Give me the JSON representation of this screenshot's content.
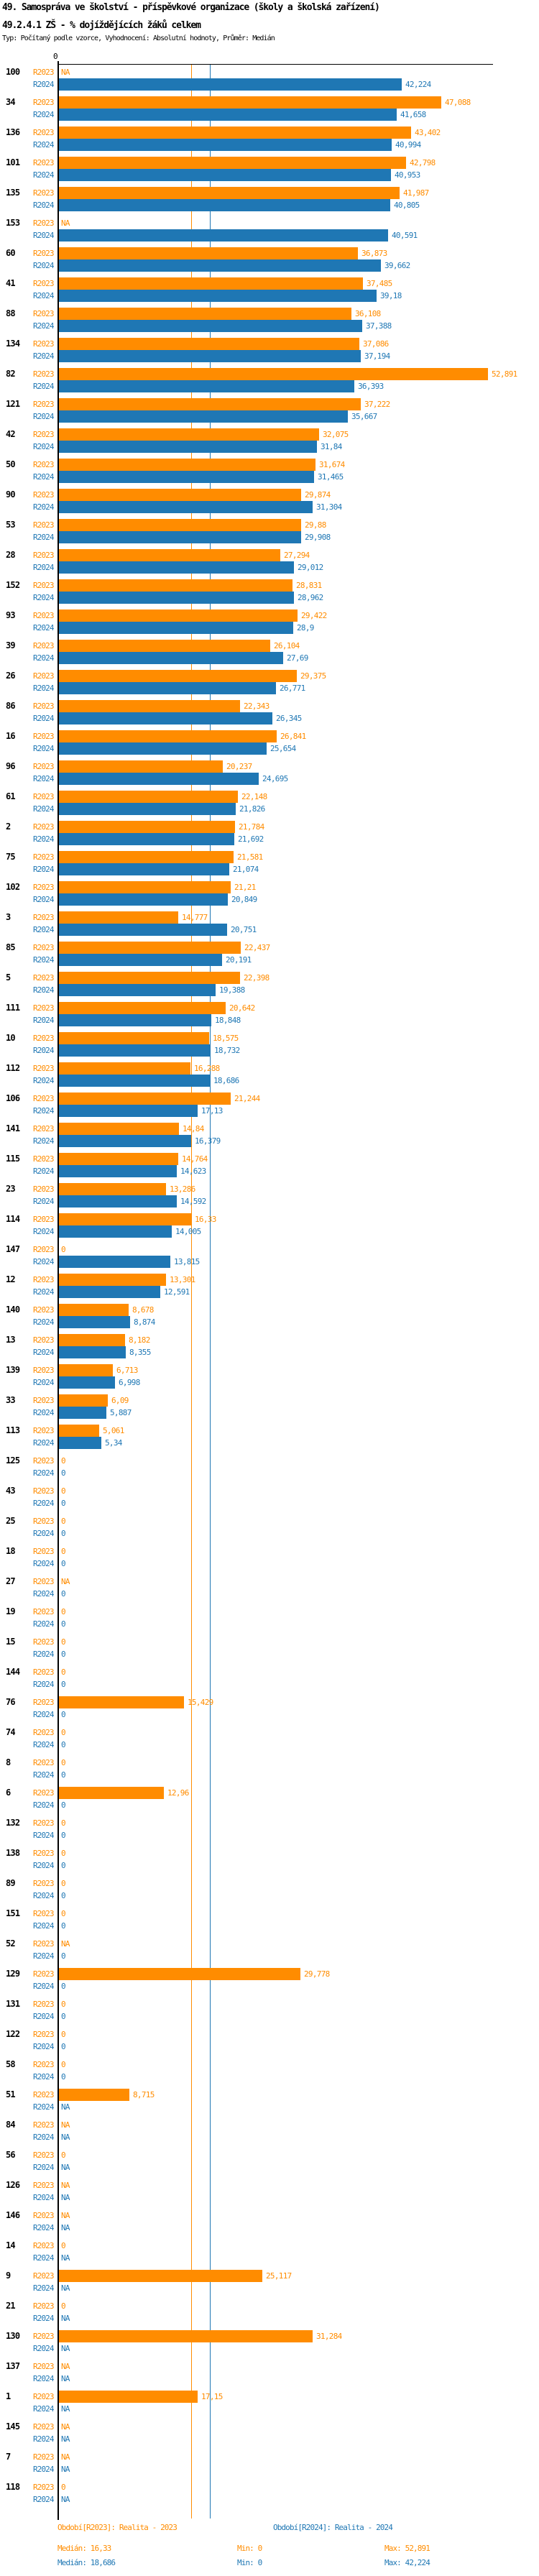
{
  "title": {
    "line1": "49. Samospráva ve školství - příspěvkové organizace (školy a školská zařízení)",
    "line2": "49.2.4.1 ZŠ - % dojíždějících žáků celkem",
    "line3": "Typ: Počítaný podle vzorce, Vyhodnocení: Absolutní hodnoty, Průměr: Medián"
  },
  "colors": {
    "r2023": "#FF8C00",
    "r2024": "#1F77B4",
    "axis": "#000000"
  },
  "chart_data": {
    "type": "bar",
    "orientation": "horizontal",
    "xlabel": "",
    "ylabel": "",
    "axis": {
      "zero_label": "0",
      "x_min": 0,
      "x_max": 53.5,
      "grid": false
    },
    "na_label": "NA",
    "series_labels": {
      "r2023": "R2023",
      "r2024": "R2024"
    },
    "medians": {
      "r2023": 16.33,
      "r2024": 18.686
    },
    "rows": [
      {
        "id": "100",
        "r2023": null,
        "r2024": 42.224
      },
      {
        "id": "34",
        "r2023": 47.088,
        "r2024": 41.658
      },
      {
        "id": "136",
        "r2023": 43.402,
        "r2024": 40.994
      },
      {
        "id": "101",
        "r2023": 42.798,
        "r2024": 40.953
      },
      {
        "id": "135",
        "r2023": 41.987,
        "r2024": 40.805
      },
      {
        "id": "153",
        "r2023": null,
        "r2024": 40.591
      },
      {
        "id": "60",
        "r2023": 36.873,
        "r2024": 39.662
      },
      {
        "id": "41",
        "r2023": 37.485,
        "r2024": 39.18
      },
      {
        "id": "88",
        "r2023": 36.108,
        "r2024": 37.388
      },
      {
        "id": "134",
        "r2023": 37.086,
        "r2024": 37.194
      },
      {
        "id": "82",
        "r2023": 52.891,
        "r2024": 36.393
      },
      {
        "id": "121",
        "r2023": 37.222,
        "r2024": 35.667
      },
      {
        "id": "42",
        "r2023": 32.075,
        "r2024": 31.84
      },
      {
        "id": "50",
        "r2023": 31.674,
        "r2024": 31.465
      },
      {
        "id": "90",
        "r2023": 29.874,
        "r2024": 31.304
      },
      {
        "id": "53",
        "r2023": 29.88,
        "r2024": 29.908
      },
      {
        "id": "28",
        "r2023": 27.294,
        "r2024": 29.012
      },
      {
        "id": "152",
        "r2023": 28.831,
        "r2024": 28.962
      },
      {
        "id": "93",
        "r2023": 29.422,
        "r2024": 28.9
      },
      {
        "id": "39",
        "r2023": 26.104,
        "r2024": 27.69
      },
      {
        "id": "26",
        "r2023": 29.375,
        "r2024": 26.771
      },
      {
        "id": "86",
        "r2023": 22.343,
        "r2024": 26.345
      },
      {
        "id": "16",
        "r2023": 26.841,
        "r2024": 25.654
      },
      {
        "id": "96",
        "r2023": 20.237,
        "r2024": 24.695
      },
      {
        "id": "61",
        "r2023": 22.148,
        "r2024": 21.826
      },
      {
        "id": "2",
        "r2023": 21.784,
        "r2024": 21.692
      },
      {
        "id": "75",
        "r2023": 21.581,
        "r2024": 21.074
      },
      {
        "id": "102",
        "r2023": 21.21,
        "r2024": 20.849
      },
      {
        "id": "3",
        "r2023": 14.777,
        "r2024": 20.751
      },
      {
        "id": "85",
        "r2023": 22.437,
        "r2024": 20.191
      },
      {
        "id": "5",
        "r2023": 22.398,
        "r2024": 19.388
      },
      {
        "id": "111",
        "r2023": 20.642,
        "r2024": 18.848
      },
      {
        "id": "10",
        "r2023": 18.575,
        "r2024": 18.732
      },
      {
        "id": "112",
        "r2023": 16.288,
        "r2024": 18.686
      },
      {
        "id": "106",
        "r2023": 21.244,
        "r2024": 17.13
      },
      {
        "id": "141",
        "r2023": 14.84,
        "r2024": 16.379
      },
      {
        "id": "115",
        "r2023": 14.764,
        "r2024": 14.623
      },
      {
        "id": "23",
        "r2023": 13.286,
        "r2024": 14.592
      },
      {
        "id": "114",
        "r2023": 16.33,
        "r2024": 14.005
      },
      {
        "id": "147",
        "r2023": 0,
        "r2024": 13.815
      },
      {
        "id": "12",
        "r2023": 13.301,
        "r2024": 12.591
      },
      {
        "id": "140",
        "r2023": 8.678,
        "r2024": 8.874
      },
      {
        "id": "13",
        "r2023": 8.182,
        "r2024": 8.355
      },
      {
        "id": "139",
        "r2023": 6.713,
        "r2024": 6.998
      },
      {
        "id": "33",
        "r2023": 6.09,
        "r2024": 5.887
      },
      {
        "id": "113",
        "r2023": 5.061,
        "r2024": 5.34
      },
      {
        "id": "125",
        "r2023": 0,
        "r2024": 0
      },
      {
        "id": "43",
        "r2023": 0,
        "r2024": 0
      },
      {
        "id": "25",
        "r2023": 0,
        "r2024": 0
      },
      {
        "id": "18",
        "r2023": 0,
        "r2024": 0
      },
      {
        "id": "27",
        "r2023": null,
        "r2024": 0
      },
      {
        "id": "19",
        "r2023": 0,
        "r2024": 0
      },
      {
        "id": "15",
        "r2023": 0,
        "r2024": 0
      },
      {
        "id": "144",
        "r2023": 0,
        "r2024": 0
      },
      {
        "id": "76",
        "r2023": 15.429,
        "r2024": 0
      },
      {
        "id": "74",
        "r2023": 0,
        "r2024": 0
      },
      {
        "id": "8",
        "r2023": 0,
        "r2024": 0
      },
      {
        "id": "6",
        "r2023": 12.96,
        "r2024": 0
      },
      {
        "id": "132",
        "r2023": 0,
        "r2024": 0
      },
      {
        "id": "138",
        "r2023": 0,
        "r2024": 0
      },
      {
        "id": "89",
        "r2023": 0,
        "r2024": 0
      },
      {
        "id": "151",
        "r2023": 0,
        "r2024": 0
      },
      {
        "id": "52",
        "r2023": null,
        "r2024": 0
      },
      {
        "id": "129",
        "r2023": 29.778,
        "r2024": 0
      },
      {
        "id": "131",
        "r2023": 0,
        "r2024": 0
      },
      {
        "id": "122",
        "r2023": 0,
        "r2024": 0
      },
      {
        "id": "58",
        "r2023": 0,
        "r2024": 0
      },
      {
        "id": "51",
        "r2023": 8.715,
        "r2024": null
      },
      {
        "id": "84",
        "r2023": null,
        "r2024": null
      },
      {
        "id": "56",
        "r2023": 0,
        "r2024": null
      },
      {
        "id": "126",
        "r2023": null,
        "r2024": null
      },
      {
        "id": "146",
        "r2023": null,
        "r2024": null
      },
      {
        "id": "14",
        "r2023": 0,
        "r2024": null
      },
      {
        "id": "9",
        "r2023": 25.117,
        "r2024": null
      },
      {
        "id": "21",
        "r2023": 0,
        "r2024": null
      },
      {
        "id": "130",
        "r2023": 31.284,
        "r2024": null
      },
      {
        "id": "137",
        "r2023": null,
        "r2024": null
      },
      {
        "id": "1",
        "r2023": 17.15,
        "r2024": null
      },
      {
        "id": "145",
        "r2023": null,
        "r2024": null
      },
      {
        "id": "7",
        "r2023": null,
        "r2024": null
      },
      {
        "id": "118",
        "r2023": 0,
        "r2024": null
      }
    ],
    "legend": {
      "r2023": "Období[R2023]: Realita - 2023",
      "r2024": "Období[R2024]: Realita - 2024",
      "position": "bottom"
    },
    "stats": {
      "r2023": {
        "median": "Medián: 16,33",
        "min": "Min: 0",
        "max": "Max: 52,891"
      },
      "r2024": {
        "median": "Medián: 18,686",
        "min": "Min: 0",
        "max": "Max: 42,224"
      }
    }
  }
}
